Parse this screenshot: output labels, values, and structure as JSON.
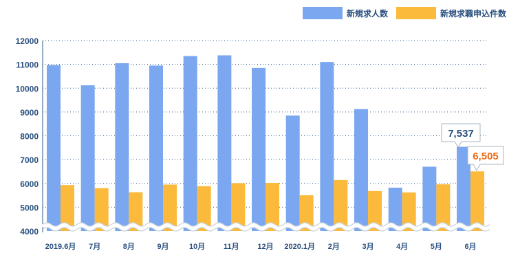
{
  "chart_data": {
    "type": "bar",
    "categories": [
      "2019.6月",
      "7月",
      "8月",
      "9月",
      "10月",
      "11月",
      "12月",
      "2020.1月",
      "2月",
      "3月",
      "4月",
      "5月",
      "6月"
    ],
    "series": [
      {
        "name": "新規求人数",
        "color": "#7aa7ef",
        "values": [
          10970,
          10120,
          11050,
          10950,
          11350,
          11380,
          10850,
          8850,
          11100,
          9120,
          5820,
          6700,
          7537
        ]
      },
      {
        "name": "新規求職申込件数",
        "color": "#fbba3c",
        "values": [
          5930,
          5800,
          5630,
          5950,
          5880,
          6010,
          6020,
          5500,
          6140,
          5680,
          5620,
          5960,
          6505
        ]
      }
    ],
    "yticks": [
      4000,
      5000,
      6000,
      7000,
      8000,
      9000,
      10000,
      11000,
      12000
    ],
    "ylim": [
      4000,
      12000
    ],
    "axis_break": true,
    "grid": "horizontal-dotted",
    "legend": "top-right",
    "annotations": [
      {
        "series": 0,
        "category": "6月",
        "text": "7,537",
        "color": "#2a4f7e"
      },
      {
        "series": 1,
        "category": "6月",
        "text": "6,505",
        "color": "#ee6a16"
      }
    ],
    "colors": {
      "axis_text": "#2a4f7e",
      "grid": "#2a5a8e",
      "break_wave": "#c8d2dc"
    }
  }
}
